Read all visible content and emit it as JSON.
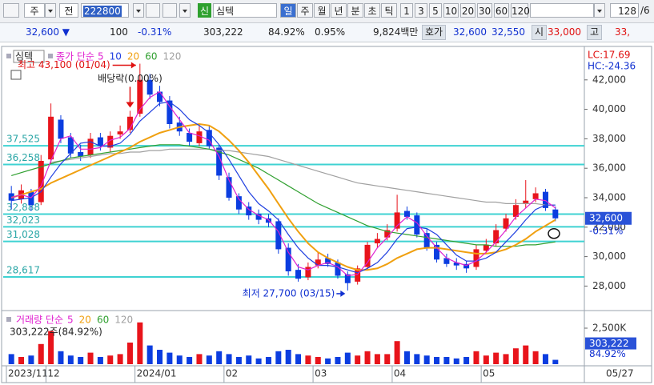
{
  "toolbar": {
    "market": "주",
    "scope": "전",
    "code": "222800",
    "badge": "신",
    "name": "심텍",
    "periods": [
      "일",
      "주",
      "월",
      "년",
      "분",
      "초",
      "틱"
    ],
    "intervals": [
      "1",
      "3",
      "5",
      "10",
      "20",
      "30",
      "60",
      "120"
    ],
    "count": "128",
    "page": "/6"
  },
  "quote_bar": {
    "price": "32,600 ▼",
    "change": "100",
    "change_pct": "-0.31%",
    "volume": "303,222",
    "volume_ratio": "84.92%",
    "turnover_rate": "0.95%",
    "amount": "9,824백만",
    "quote_label": "호가",
    "ask": "32,600",
    "bid": "32,550",
    "open_label": "시",
    "open": "33,000",
    "high_label": "고",
    "high": "33,"
  },
  "chart_data": [
    {
      "type": "candlestick",
      "title": "심텍",
      "legend_label": "종가 단순",
      "categories": [
        "2023/11",
        null,
        null,
        null,
        "12",
        null,
        null,
        null,
        null,
        null,
        null,
        null,
        null,
        "2024/01",
        null,
        null,
        null,
        null,
        null,
        null,
        null,
        null,
        "02",
        null,
        null,
        null,
        null,
        null,
        null,
        null,
        null,
        "03",
        null,
        null,
        null,
        null,
        null,
        null,
        null,
        "04",
        null,
        null,
        null,
        null,
        null,
        null,
        null,
        null,
        "05",
        null,
        null,
        null,
        null,
        null,
        null,
        null
      ],
      "open": [
        34300,
        33900,
        34400,
        33700,
        36600,
        39300,
        38100,
        37100,
        36900,
        38100,
        37400,
        38300,
        38600,
        39700,
        42000,
        41200,
        40600,
        39100,
        38400,
        37700,
        38600,
        37400,
        35400,
        34100,
        33400,
        32900,
        32600,
        32400,
        30600,
        29100,
        28600,
        29400,
        29900,
        29600,
        28800,
        28300,
        29300,
        30900,
        31300,
        31900,
        33100,
        32800,
        31600,
        30800,
        29900,
        29600,
        29500,
        29300,
        30400,
        30900,
        31900,
        32700,
        33600,
        33900,
        34400,
        33200
      ],
      "high": [
        34800,
        34900,
        34600,
        36900,
        40400,
        39600,
        38400,
        37600,
        38400,
        38400,
        38500,
        38900,
        39900,
        43100,
        42400,
        41600,
        40900,
        39500,
        38700,
        38900,
        38900,
        37600,
        35700,
        34300,
        33700,
        33200,
        32900,
        32600,
        30900,
        29500,
        29600,
        30300,
        30200,
        29800,
        29000,
        29400,
        31000,
        31600,
        32200,
        34200,
        33400,
        33000,
        31900,
        31000,
        30200,
        29900,
        29700,
        30800,
        31200,
        32200,
        32900,
        33900,
        35200,
        34700,
        34600,
        33400
      ],
      "low": [
        33200,
        33600,
        33100,
        33500,
        36300,
        37700,
        36700,
        36500,
        36700,
        37200,
        37100,
        38000,
        38400,
        39500,
        40700,
        40200,
        38700,
        38200,
        37500,
        37500,
        37300,
        35200,
        33800,
        32900,
        32500,
        32200,
        32000,
        30200,
        28700,
        28300,
        28400,
        29200,
        29300,
        28500,
        27700,
        28100,
        29100,
        30600,
        31100,
        31700,
        32500,
        31300,
        30400,
        29600,
        29300,
        29100,
        28900,
        29100,
        30200,
        30700,
        31700,
        32500,
        33300,
        33700,
        33100,
        32400
      ],
      "close": [
        33800,
        34500,
        33500,
        36500,
        39500,
        38000,
        37000,
        36800,
        38000,
        37500,
        38200,
        38500,
        39500,
        42000,
        41000,
        40500,
        39000,
        38500,
        37800,
        38500,
        37500,
        35500,
        34000,
        33200,
        32800,
        32500,
        32300,
        30500,
        29000,
        28500,
        29300,
        29800,
        29500,
        28700,
        28200,
        29200,
        30800,
        31200,
        31800,
        33000,
        32700,
        31500,
        30600,
        29800,
        29500,
        29400,
        29200,
        30500,
        30800,
        31800,
        32600,
        33500,
        33800,
        34300,
        33300,
        32600
      ],
      "up_color": "#e8141b",
      "down_color": "#0b3de0",
      "series": [
        {
          "name": "5",
          "color": "#e020d0",
          "values": [
            34000,
            34200,
            34000,
            34800,
            36500,
            38000,
            38200,
            37300,
            37300,
            37400,
            37900,
            38100,
            38700,
            40000,
            40800,
            41200,
            40200,
            39300,
            38400,
            38200,
            37900,
            36800,
            35200,
            33900,
            33200,
            32800,
            32500,
            31700,
            30300,
            29300,
            29100,
            29400,
            29600,
            29300,
            28700,
            28800,
            29600,
            30600,
            31300,
            32100,
            32700,
            32300,
            31400,
            30600,
            29900,
            29600,
            29400,
            29700,
            30300,
            31000,
            31800,
            32700,
            33300,
            33900,
            33800,
            33300
          ]
        },
        {
          "name": "10",
          "color": "#2040e0",
          "values": [
            33800,
            33900,
            34000,
            34400,
            35400,
            36300,
            37000,
            37700,
            37800,
            37500,
            37500,
            37700,
            38300,
            39200,
            39800,
            40400,
            40500,
            40000,
            39300,
            38900,
            38400,
            37600,
            36600,
            35500,
            34400,
            33600,
            33100,
            32500,
            31500,
            30600,
            29900,
            29400,
            29400,
            29300,
            29100,
            28900,
            29200,
            29600,
            30300,
            31200,
            31900,
            32000,
            31900,
            31500,
            30800,
            30100,
            29700,
            29700,
            29900,
            30300,
            31000,
            31700,
            32500,
            33200,
            33500,
            33500
          ]
        },
        {
          "name": "20",
          "color": "#f0a010",
          "values": [
            34000,
            34200,
            34400,
            34600,
            35000,
            35300,
            35600,
            35900,
            36200,
            36500,
            36800,
            37100,
            37400,
            37800,
            38100,
            38400,
            38600,
            38800,
            38900,
            39000,
            38900,
            38500,
            37900,
            37200,
            36400,
            35500,
            34600,
            33600,
            32600,
            31700,
            30900,
            30300,
            29900,
            29600,
            29300,
            29100,
            29100,
            29200,
            29500,
            29900,
            30200,
            30500,
            30600,
            30600,
            30500,
            30400,
            30300,
            30200,
            30200,
            30300,
            30500,
            30800,
            31200,
            31700,
            32100,
            32500
          ]
        },
        {
          "name": "60",
          "color": "#30a030",
          "values": [
            35500,
            35700,
            35900,
            36100,
            36300,
            36500,
            36700,
            36800,
            36900,
            37000,
            37100,
            37200,
            37300,
            37400,
            37500,
            37600,
            37600,
            37600,
            37500,
            37400,
            37300,
            37100,
            36900,
            36600,
            36300,
            36000,
            35600,
            35200,
            34800,
            34400,
            34000,
            33600,
            33300,
            33000,
            32700,
            32400,
            32100,
            31900,
            31700,
            31600,
            31500,
            31400,
            31300,
            31200,
            31100,
            31000,
            30900,
            30800,
            30800,
            30700,
            30700,
            30700,
            30800,
            30800,
            30900,
            31000
          ]
        },
        {
          "name": "120",
          "color": "#a0a0a0",
          "values": [
            null,
            null,
            null,
            null,
            36400,
            36500,
            36600,
            36700,
            36800,
            36900,
            37000,
            37000,
            37100,
            37100,
            37200,
            37200,
            37300,
            37300,
            37300,
            37300,
            37300,
            37200,
            37200,
            37100,
            37000,
            36900,
            36800,
            36600,
            36400,
            36200,
            36000,
            35800,
            35600,
            35400,
            35200,
            35000,
            34900,
            34800,
            34700,
            34600,
            34500,
            34400,
            34300,
            34200,
            34100,
            34000,
            33900,
            33800,
            33700,
            33700,
            33600,
            33600,
            33600,
            33600,
            33500,
            33500
          ]
        }
      ],
      "ylim": [
        26500,
        44000
      ],
      "yticks": [
        {
          "value": 28000,
          "label": "28,000"
        },
        {
          "value": 30000,
          "label": "30,000"
        },
        {
          "value": 32000,
          "label": "32,000"
        },
        {
          "value": 34000,
          "label": "34,000"
        },
        {
          "value": 36000,
          "label": "36,000"
        },
        {
          "value": 38000,
          "label": "38,000"
        },
        {
          "value": 40000,
          "label": "40,000"
        },
        {
          "value": 42000,
          "label": "42,000"
        }
      ],
      "levels": [
        {
          "value": 37525,
          "label": "37,525"
        },
        {
          "value": 36258,
          "label": "36,258"
        },
        {
          "value": 32888,
          "label": "32,888"
        },
        {
          "value": 32023,
          "label": "32,023"
        },
        {
          "value": 31028,
          "label": "31,028"
        },
        {
          "value": 28617,
          "label": "28,617"
        }
      ],
      "level_color": "#3fd2d2",
      "annotations": {
        "high": "최고 43,100 (01/04)",
        "low": "최저 27,700 (03/15)",
        "dividend": "배당락(0.00%)"
      },
      "last_price": {
        "value": 32600,
        "label": "32,600"
      },
      "last_change": "-0.31%",
      "lc": "LC:17.69",
      "hc": "HC:-24.36",
      "last_date": "05/27"
    },
    {
      "type": "bar",
      "title": "거래량 단순",
      "legend": [
        {
          "name": "5",
          "color": "#e020d0"
        },
        {
          "name": "20",
          "color": "#f0a010"
        },
        {
          "name": "60",
          "color": "#30a030"
        },
        {
          "name": "120",
          "color": "#a0a0a0"
        }
      ],
      "values": [
        700,
        500,
        600,
        1400,
        2300,
        900,
        600,
        500,
        800,
        500,
        600,
        700,
        1500,
        2900,
        1300,
        1000,
        800,
        600,
        500,
        700,
        600,
        900,
        700,
        500,
        600,
        400,
        500,
        900,
        1000,
        700,
        600,
        500,
        400,
        500,
        800,
        600,
        900,
        700,
        700,
        1600,
        900,
        700,
        600,
        500,
        500,
        400,
        500,
        900,
        600,
        800,
        700,
        1100,
        1300,
        900,
        700,
        303.222
      ],
      "ylim": [
        0,
        3500
      ],
      "yticks": [
        {
          "value": 2500,
          "label": "2,500K"
        }
      ],
      "summary": "303,222주(84.92%)",
      "last_value": "303,222",
      "last_ratio": "84.92%"
    }
  ]
}
